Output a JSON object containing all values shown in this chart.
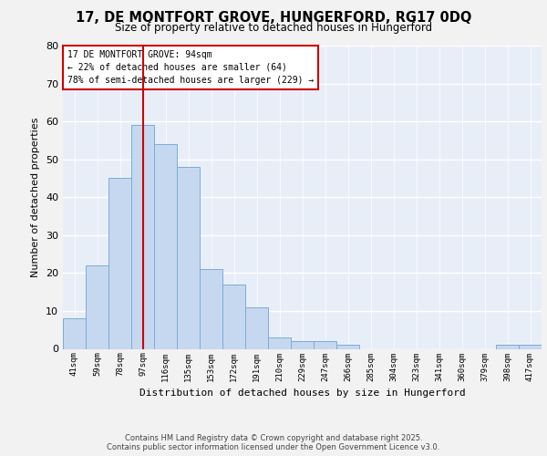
{
  "title1": "17, DE MONTFORT GROVE, HUNGERFORD, RG17 0DQ",
  "title2": "Size of property relative to detached houses in Hungerford",
  "xlabel": "Distribution of detached houses by size in Hungerford",
  "ylabel": "Number of detached properties",
  "categories": [
    "41sqm",
    "59sqm",
    "78sqm",
    "97sqm",
    "116sqm",
    "135sqm",
    "153sqm",
    "172sqm",
    "191sqm",
    "210sqm",
    "229sqm",
    "247sqm",
    "266sqm",
    "285sqm",
    "304sqm",
    "323sqm",
    "341sqm",
    "360sqm",
    "379sqm",
    "398sqm",
    "417sqm"
  ],
  "values": [
    8,
    22,
    45,
    59,
    54,
    48,
    21,
    17,
    11,
    3,
    2,
    2,
    1,
    0,
    0,
    0,
    0,
    0,
    0,
    1,
    1
  ],
  "bar_color": "#c5d8f0",
  "bar_edge_color": "#7aadd4",
  "vline_x": 3.5,
  "vline_color": "#cc0000",
  "annotation_text": "17 DE MONTFORT GROVE: 94sqm\n← 22% of detached houses are smaller (64)\n78% of semi-detached houses are larger (229) →",
  "annotation_box_color": "#ffffff",
  "annotation_box_edge": "#cc0000",
  "ylim": [
    0,
    80
  ],
  "yticks": [
    0,
    10,
    20,
    30,
    40,
    50,
    60,
    70,
    80
  ],
  "background_color": "#e8eef8",
  "grid_color": "#ffffff",
  "footer_text": "Contains HM Land Registry data © Crown copyright and database right 2025.\nContains public sector information licensed under the Open Government Licence v3.0."
}
